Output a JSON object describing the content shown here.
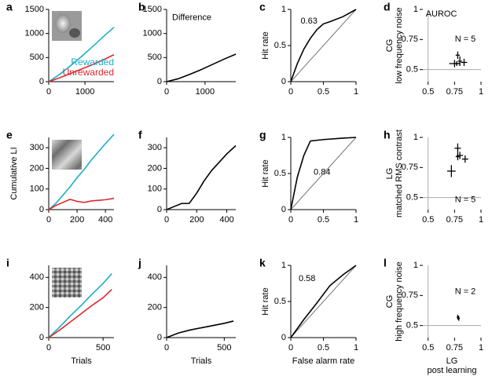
{
  "chart_data": [
    {
      "type": "line",
      "label": "a",
      "xlim": [
        0,
        1800
      ],
      "ylim": [
        0,
        1500
      ],
      "xticks": [
        0,
        1000
      ],
      "yticks": [
        0,
        500,
        1000,
        1500
      ],
      "legend": true,
      "x": [
        0,
        300,
        600,
        900,
        1200,
        1500,
        1800
      ],
      "series": [
        {
          "name": "Rewarded",
          "color": "#1aaec8",
          "values": [
            0,
            150,
            330,
            520,
            720,
            930,
            1130
          ]
        },
        {
          "name": "Unrewarded",
          "color": "#e0282e",
          "values": [
            0,
            80,
            170,
            260,
            350,
            450,
            560
          ]
        }
      ]
    },
    {
      "type": "line",
      "label": "b",
      "annotations": [
        "Difference"
      ],
      "xlim": [
        0,
        1800
      ],
      "ylim": [
        0,
        1500
      ],
      "xticks": [
        0,
        1000
      ],
      "yticks": [
        0,
        500,
        1000,
        1500
      ],
      "x": [
        0,
        300,
        600,
        900,
        1200,
        1500,
        1800
      ],
      "series": [
        {
          "color": "#000000",
          "values": [
            0,
            60,
            150,
            250,
            360,
            470,
            570
          ]
        }
      ]
    },
    {
      "type": "roc",
      "label": "c",
      "annotations": [
        "0.63"
      ],
      "ylabel": [
        "Hit rate"
      ],
      "xlim": [
        0,
        1
      ],
      "ylim": [
        0,
        1
      ],
      "xticks": [
        0,
        0.5,
        1
      ],
      "yticks": [
        0,
        0.5,
        1
      ],
      "x": [
        0,
        0.1,
        0.2,
        0.3,
        0.4,
        0.5,
        0.6,
        0.8,
        1
      ],
      "series": [
        {
          "color": "#000000",
          "values": [
            0,
            0.25,
            0.45,
            0.6,
            0.72,
            0.8,
            0.83,
            0.9,
            1
          ]
        }
      ]
    },
    {
      "type": "scatter",
      "label": "d",
      "annotations": [
        "AUROC",
        "N = 5"
      ],
      "ylabel": [
        "CG",
        "low frequency noise"
      ],
      "xlim": [
        0.45,
        1
      ],
      "ylim": [
        0.4,
        1
      ],
      "xticks": [
        0.5,
        0.75,
        1
      ],
      "yticks": [
        0.5,
        0.75,
        1
      ],
      "xref": 0.5,
      "yref": 0.5,
      "series": [
        {
          "color": "#000000",
          "x": [
            0.75,
            0.78,
            0.8,
            0.84,
            0.77
          ],
          "values": [
            0.55,
            0.62,
            0.57,
            0.56,
            0.55
          ],
          "xerr": [
            0.05,
            0.02,
            0.02,
            0.03,
            0.03
          ],
          "yerr": [
            0.03,
            0.03,
            0.04,
            0.03,
            0.02
          ]
        }
      ]
    },
    {
      "type": "line",
      "label": "e",
      "ylabel": [
        "Cumulative LI"
      ],
      "xlim": [
        0,
        460
      ],
      "ylim": [
        0,
        350
      ],
      "xticks": [
        0,
        200,
        400
      ],
      "yticks": [
        0,
        100,
        200,
        300
      ],
      "x": [
        0,
        50,
        100,
        150,
        200,
        250,
        300,
        350,
        400,
        460
      ],
      "series": [
        {
          "name": "Rewarded",
          "color": "#1aaec8",
          "values": [
            0,
            30,
            70,
            110,
            155,
            195,
            240,
            280,
            320,
            365
          ]
        },
        {
          "name": "Unrewarded",
          "color": "#e0282e",
          "values": [
            0,
            20,
            35,
            50,
            40,
            35,
            42,
            45,
            48,
            55
          ]
        }
      ]
    },
    {
      "type": "line",
      "label": "f",
      "xlim": [
        0,
        460
      ],
      "ylim": [
        0,
        350
      ],
      "xticks": [
        0,
        200,
        400
      ],
      "yticks": [
        0,
        100,
        200,
        300
      ],
      "x": [
        0,
        50,
        100,
        150,
        200,
        250,
        300,
        350,
        400,
        460
      ],
      "series": [
        {
          "color": "#000000",
          "values": [
            0,
            15,
            30,
            30,
            80,
            140,
            190,
            230,
            270,
            310
          ]
        }
      ]
    },
    {
      "type": "roc",
      "label": "g",
      "annotations": [
        "0.84"
      ],
      "ylabel": [
        "Hit rate"
      ],
      "xlim": [
        0,
        1
      ],
      "ylim": [
        0,
        1
      ],
      "xticks": [
        0,
        0.5,
        1
      ],
      "yticks": [
        0,
        0.5,
        1
      ],
      "x": [
        0,
        0.1,
        0.2,
        0.3,
        0.5,
        0.8,
        1
      ],
      "series": [
        {
          "color": "#000000",
          "values": [
            0,
            0.45,
            0.75,
            0.95,
            0.97,
            0.99,
            1
          ]
        }
      ]
    },
    {
      "type": "scatter",
      "label": "h",
      "annotations": [
        "N = 5"
      ],
      "ylabel": [
        "LG",
        "matched RMS contrast"
      ],
      "xlim": [
        0.45,
        1
      ],
      "ylim": [
        0.4,
        1
      ],
      "xticks": [
        0.5,
        0.75,
        1
      ],
      "yticks": [
        0.5,
        0.75,
        1
      ],
      "xref": 0.5,
      "yref": 0.5,
      "series": [
        {
          "color": "#000000",
          "x": [
            0.78,
            0.8,
            0.85,
            0.72,
            0.78
          ],
          "values": [
            0.91,
            0.85,
            0.82,
            0.72,
            0.84
          ],
          "xerr": [
            0.03,
            0.03,
            0.03,
            0.04,
            0.02
          ],
          "yerr": [
            0.04,
            0.03,
            0.03,
            0.05,
            0.03
          ]
        }
      ]
    },
    {
      "type": "line",
      "label": "i",
      "xlabel": [
        "Trials"
      ],
      "xlim": [
        0,
        600
      ],
      "ylim": [
        0,
        480
      ],
      "xticks": [
        0,
        500
      ],
      "yticks": [
        0,
        200,
        400
      ],
      "x": [
        0,
        100,
        200,
        300,
        400,
        500,
        580
      ],
      "series": [
        {
          "name": "Rewarded",
          "color": "#1aaec8",
          "values": [
            0,
            70,
            145,
            215,
            290,
            360,
            425
          ]
        },
        {
          "name": "Unrewarded",
          "color": "#e0282e",
          "values": [
            0,
            50,
            105,
            160,
            215,
            265,
            320
          ]
        }
      ]
    },
    {
      "type": "line",
      "label": "j",
      "xlabel": [
        "Trials"
      ],
      "xlim": [
        0,
        600
      ],
      "ylim": [
        0,
        480
      ],
      "xticks": [
        0,
        500
      ],
      "yticks": [
        0,
        200,
        400
      ],
      "x": [
        0,
        100,
        200,
        300,
        400,
        500,
        580
      ],
      "series": [
        {
          "color": "#000000",
          "values": [
            0,
            30,
            50,
            65,
            80,
            95,
            110
          ]
        }
      ]
    },
    {
      "type": "roc",
      "label": "k",
      "annotations": [
        "0.58"
      ],
      "ylabel": [
        "Hit rate"
      ],
      "xlabel": [
        "False alarm rate"
      ],
      "xlim": [
        0,
        1
      ],
      "ylim": [
        0,
        1
      ],
      "xticks": [
        0,
        0.5,
        1
      ],
      "yticks": [
        0,
        0.5,
        1
      ],
      "x": [
        0,
        0.2,
        0.4,
        0.6,
        0.8,
        1
      ],
      "series": [
        {
          "color": "#000000",
          "values": [
            0,
            0.25,
            0.48,
            0.72,
            0.87,
            1
          ]
        }
      ]
    },
    {
      "type": "scatter",
      "label": "l",
      "annotations": [
        "N = 2"
      ],
      "ylabel": [
        "CG",
        "high frequency noise"
      ],
      "xlabel": [
        "LG",
        "post learning"
      ],
      "xlim": [
        0.45,
        1
      ],
      "ylim": [
        0.4,
        1
      ],
      "xticks": [
        0.5,
        0.75,
        1
      ],
      "yticks": [
        0.5,
        0.75,
        1
      ],
      "xref": 0.5,
      "yref": 0.5,
      "series": [
        {
          "color": "#000000",
          "x": [
            0.78,
            0.79
          ],
          "values": [
            0.57,
            0.56
          ],
          "xerr": [
            0.01,
            0.01
          ],
          "yerr": [
            0.02,
            0.02
          ]
        }
      ]
    }
  ]
}
